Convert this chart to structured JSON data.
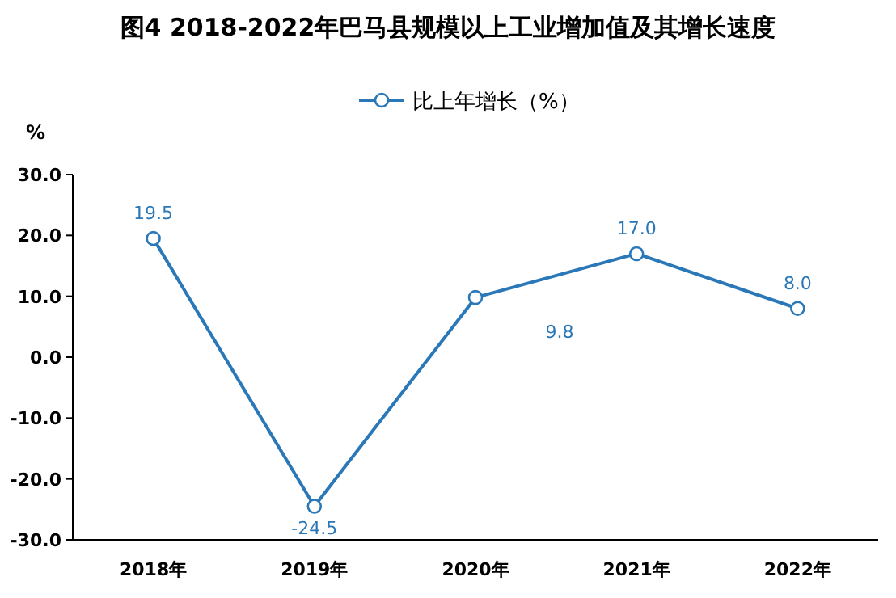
{
  "chart_data": {
    "type": "line",
    "title": "图4  2018-2022年巴马县规模以上工业增加值及其增长速度",
    "ylabel": "%",
    "categories": [
      "2018年",
      "2019年",
      "2020年",
      "2021年",
      "2022年"
    ],
    "series": [
      {
        "name": "比上年增长（%）",
        "color": "#2a78b8",
        "values": [
          19.5,
          -24.5,
          9.8,
          17.0,
          8.0
        ],
        "value_labels": [
          "19.5",
          "-24.5",
          null,
          "17.0",
          "8.0"
        ]
      }
    ],
    "annotations": [
      "9.8"
    ],
    "ylim": [
      -30,
      30
    ],
    "yticks": [
      {
        "value": -30,
        "label": "-30.0"
      },
      {
        "value": -20,
        "label": "-20.0"
      },
      {
        "value": -10,
        "label": "-10.0"
      },
      {
        "value": 0,
        "label": "0.0"
      },
      {
        "value": 10,
        "label": "10.0"
      },
      {
        "value": 20,
        "label": "20.0"
      },
      {
        "value": 30,
        "label": "30.0"
      }
    ],
    "marker": "circle",
    "line_style": "solid",
    "legend": "top",
    "grid": false
  }
}
